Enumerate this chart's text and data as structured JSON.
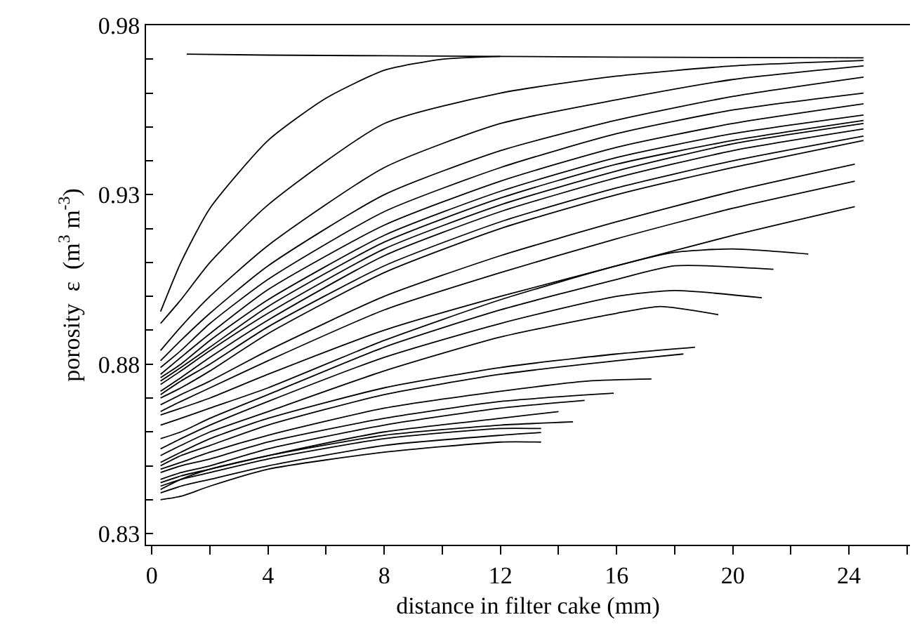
{
  "chart_data": {
    "type": "line",
    "xlabel": "distance in filter cake (mm)",
    "ylabel": "porosity  ε  (m$^{3}$ m$^{-3}$)",
    "xlim": [
      -0.2,
      26.1
    ],
    "ylim": [
      0.8267,
      0.98
    ],
    "xticks": [
      0,
      {
        "value": 2,
        "label": null
      },
      4,
      {
        "value": 6,
        "label": null
      },
      8,
      {
        "value": 10,
        "label": null
      },
      12,
      {
        "value": 14,
        "label": null
      },
      16,
      {
        "value": 18,
        "label": null
      },
      20,
      {
        "value": 22,
        "label": null
      },
      24,
      {
        "value": 26,
        "label": null
      }
    ],
    "yticks": [
      0.83,
      {
        "value": 0.84,
        "label": null
      },
      {
        "value": 0.85,
        "label": null
      },
      {
        "value": 0.86,
        "label": null
      },
      {
        "value": 0.87,
        "label": null
      },
      0.88,
      {
        "value": 0.89,
        "label": null
      },
      {
        "value": 0.9,
        "label": null
      },
      {
        "value": 0.91,
        "label": null
      },
      {
        "value": 0.92,
        "label": null
      },
      0.93,
      {
        "value": 0.94,
        "label": null
      },
      {
        "value": 0.95,
        "label": null
      },
      {
        "value": 0.96,
        "label": null
      },
      {
        "value": 0.97,
        "label": null
      },
      0.98
    ],
    "marker": "none",
    "line_style": "solid",
    "series": [
      {
        "color": "#000000",
        "x": [
          1.2,
          4,
          8,
          12,
          16,
          20,
          24.5
        ],
        "values": [
          0.9715,
          0.9712,
          0.971,
          0.9708,
          0.9706,
          0.9705,
          0.9704
        ]
      },
      {
        "color": "#000000",
        "x": [
          0.3,
          1,
          2,
          4,
          6,
          8,
          10,
          12
        ],
        "values": [
          0.8955,
          0.91,
          0.926,
          0.946,
          0.9585,
          0.9667,
          0.97,
          0.9708
        ]
      },
      {
        "color": "#000000",
        "x": [
          0.3,
          1,
          2,
          4,
          8,
          12,
          16,
          20,
          24.5
        ],
        "values": [
          0.892,
          0.899,
          0.91,
          0.927,
          0.951,
          0.96,
          0.965,
          0.968,
          0.9696
        ]
      },
      {
        "color": "#000000",
        "x": [
          0.3,
          1,
          2,
          4,
          8,
          12,
          16,
          20,
          24.5
        ],
        "values": [
          0.884,
          0.891,
          0.9,
          0.915,
          0.938,
          0.951,
          0.958,
          0.964,
          0.968
        ]
      },
      {
        "color": "#000000",
        "x": [
          0.3,
          1,
          2,
          4,
          8,
          12,
          16,
          20,
          24.5
        ],
        "values": [
          0.881,
          0.887,
          0.895,
          0.909,
          0.93,
          0.943,
          0.952,
          0.959,
          0.9647
        ]
      },
      {
        "color": "#000000",
        "x": [
          0.3,
          1,
          2,
          4,
          8,
          12,
          16,
          20,
          24.5
        ],
        "values": [
          0.879,
          0.884,
          0.892,
          0.905,
          0.925,
          0.938,
          0.948,
          0.955,
          0.96
        ]
      },
      {
        "color": "#000000",
        "x": [
          0.3,
          1,
          2,
          4,
          8,
          12,
          16,
          20,
          24.5
        ],
        "values": [
          0.877,
          0.882,
          0.889,
          0.902,
          0.921,
          0.934,
          0.944,
          0.951,
          0.9568
        ]
      },
      {
        "color": "#000000",
        "x": [
          0.3,
          1,
          2,
          4,
          8,
          12,
          16,
          20,
          24.5
        ],
        "values": [
          0.876,
          0.88,
          0.887,
          0.899,
          0.918,
          0.931,
          0.941,
          0.948,
          0.9535
        ]
      },
      {
        "color": "#000000",
        "x": [
          0.3,
          1,
          2,
          4,
          8,
          12,
          16,
          20,
          24.5
        ],
        "values": [
          0.875,
          0.879,
          0.885,
          0.897,
          0.916,
          0.929,
          0.939,
          0.946,
          0.9519
        ]
      },
      {
        "color": "#000000",
        "x": [
          0.3,
          1,
          2,
          4,
          8,
          12,
          16,
          20,
          24.5
        ],
        "values": [
          0.874,
          0.878,
          0.884,
          0.895,
          0.914,
          0.927,
          0.937,
          0.945,
          0.951
        ]
      },
      {
        "color": "#000000",
        "x": [
          0.3,
          1,
          2,
          4,
          8,
          12,
          16,
          20,
          24.5
        ],
        "values": [
          0.872,
          0.876,
          0.882,
          0.893,
          0.912,
          0.925,
          0.935,
          0.943,
          0.9494
        ]
      },
      {
        "color": "#000000",
        "x": [
          0.3,
          1,
          2,
          4,
          8,
          12,
          16,
          20,
          24.5
        ],
        "values": [
          0.871,
          0.875,
          0.88,
          0.891,
          0.909,
          0.922,
          0.932,
          0.94,
          0.9473
        ]
      },
      {
        "color": "#000000",
        "x": [
          0.3,
          1,
          2,
          4,
          8,
          12,
          16,
          20,
          24.5
        ],
        "values": [
          0.87,
          0.873,
          0.878,
          0.889,
          0.907,
          0.92,
          0.93,
          0.938,
          0.946
        ]
      },
      {
        "color": "#000000",
        "x": [
          0.3,
          1,
          2,
          4,
          8,
          12,
          16,
          20,
          24.2
        ],
        "values": [
          0.868,
          0.871,
          0.875,
          0.884,
          0.9,
          0.912,
          0.922,
          0.931,
          0.939
        ]
      },
      {
        "color": "#000000",
        "x": [
          0.3,
          1,
          2,
          4,
          8,
          12,
          16,
          20,
          24.2
        ],
        "values": [
          0.866,
          0.869,
          0.873,
          0.881,
          0.896,
          0.907,
          0.917,
          0.926,
          0.934
        ]
      },
      {
        "color": "#000000",
        "x": [
          0.3,
          1,
          2,
          4,
          8,
          12,
          16,
          20,
          24.2
        ],
        "values": [
          0.865,
          0.867,
          0.87,
          0.877,
          0.89,
          0.9,
          0.909,
          0.918,
          0.9265
        ]
      },
      {
        "color": "#000000",
        "x": [
          0.3,
          1,
          2,
          4,
          8,
          12,
          16,
          18,
          20,
          22.6
        ],
        "values": [
          0.862,
          0.864,
          0.867,
          0.873,
          0.887,
          0.899,
          0.909,
          0.913,
          0.914,
          0.9125
        ]
      },
      {
        "color": "#000000",
        "x": [
          0.3,
          1,
          2,
          4,
          8,
          12,
          16,
          18,
          21.4
        ],
        "values": [
          0.858,
          0.86,
          0.864,
          0.871,
          0.885,
          0.896,
          0.905,
          0.909,
          0.908
        ]
      },
      {
        "color": "#000000",
        "x": [
          0.3,
          1,
          2,
          4,
          8,
          12,
          16,
          18,
          21
        ],
        "values": [
          0.855,
          0.858,
          0.862,
          0.869,
          0.882,
          0.892,
          0.9,
          0.9017,
          0.8996
        ]
      },
      {
        "color": "#000000",
        "x": [
          0.3,
          1,
          2,
          4,
          8,
          12,
          16,
          17.5,
          19.5
        ],
        "values": [
          0.853,
          0.856,
          0.86,
          0.866,
          0.878,
          0.888,
          0.895,
          0.897,
          0.8946
        ]
      },
      {
        "color": "#000000",
        "x": [
          0.3,
          1,
          2,
          4,
          8,
          12,
          16,
          18.7
        ],
        "values": [
          0.851,
          0.854,
          0.858,
          0.864,
          0.873,
          0.879,
          0.883,
          0.885
        ]
      },
      {
        "color": "#000000",
        "x": [
          0.3,
          1,
          2,
          4,
          8,
          12,
          16,
          18.3
        ],
        "values": [
          0.85,
          0.853,
          0.856,
          0.862,
          0.871,
          0.877,
          0.881,
          0.883
        ]
      },
      {
        "color": "#000000",
        "x": [
          0.3,
          1,
          2,
          4,
          8,
          12,
          15,
          17.2
        ],
        "values": [
          0.849,
          0.851,
          0.854,
          0.859,
          0.867,
          0.872,
          0.875,
          0.8756
        ]
      },
      {
        "color": "#000000",
        "x": [
          0.3,
          1,
          2,
          4,
          8,
          12,
          15.9
        ],
        "values": [
          0.848,
          0.85,
          0.852,
          0.857,
          0.864,
          0.869,
          0.8714
        ]
      },
      {
        "color": "#000000",
        "x": [
          0.3,
          1,
          2,
          4,
          8,
          12,
          14.9
        ],
        "values": [
          0.846,
          0.848,
          0.85,
          0.855,
          0.862,
          0.867,
          0.8693
        ]
      },
      {
        "color": "#000000",
        "x": [
          0.3,
          1,
          2,
          4,
          8,
          12,
          14.5
        ],
        "values": [
          0.843,
          0.846,
          0.849,
          0.853,
          0.859,
          0.862,
          0.863
        ]
      },
      {
        "color": "#000000",
        "x": [
          0.3,
          1,
          2,
          4,
          8,
          12,
          14.0
        ],
        "values": [
          0.845,
          0.847,
          0.849,
          0.853,
          0.86,
          0.864,
          0.866
        ]
      },
      {
        "color": "#000000",
        "x": [
          0.3,
          1,
          2,
          4,
          8,
          12,
          13.4
        ],
        "values": [
          0.844,
          0.846,
          0.848,
          0.852,
          0.858,
          0.861,
          0.861
        ]
      },
      {
        "color": "#000000",
        "x": [
          0.3,
          1,
          2,
          4,
          8,
          12,
          13.4
        ],
        "values": [
          0.842,
          0.844,
          0.846,
          0.85,
          0.856,
          0.859,
          0.8598
        ]
      },
      {
        "color": "#000000",
        "x": [
          0.3,
          1,
          2,
          4,
          8,
          12,
          13.4
        ],
        "values": [
          0.84,
          0.841,
          0.844,
          0.849,
          0.854,
          0.857,
          0.857
        ]
      }
    ]
  }
}
